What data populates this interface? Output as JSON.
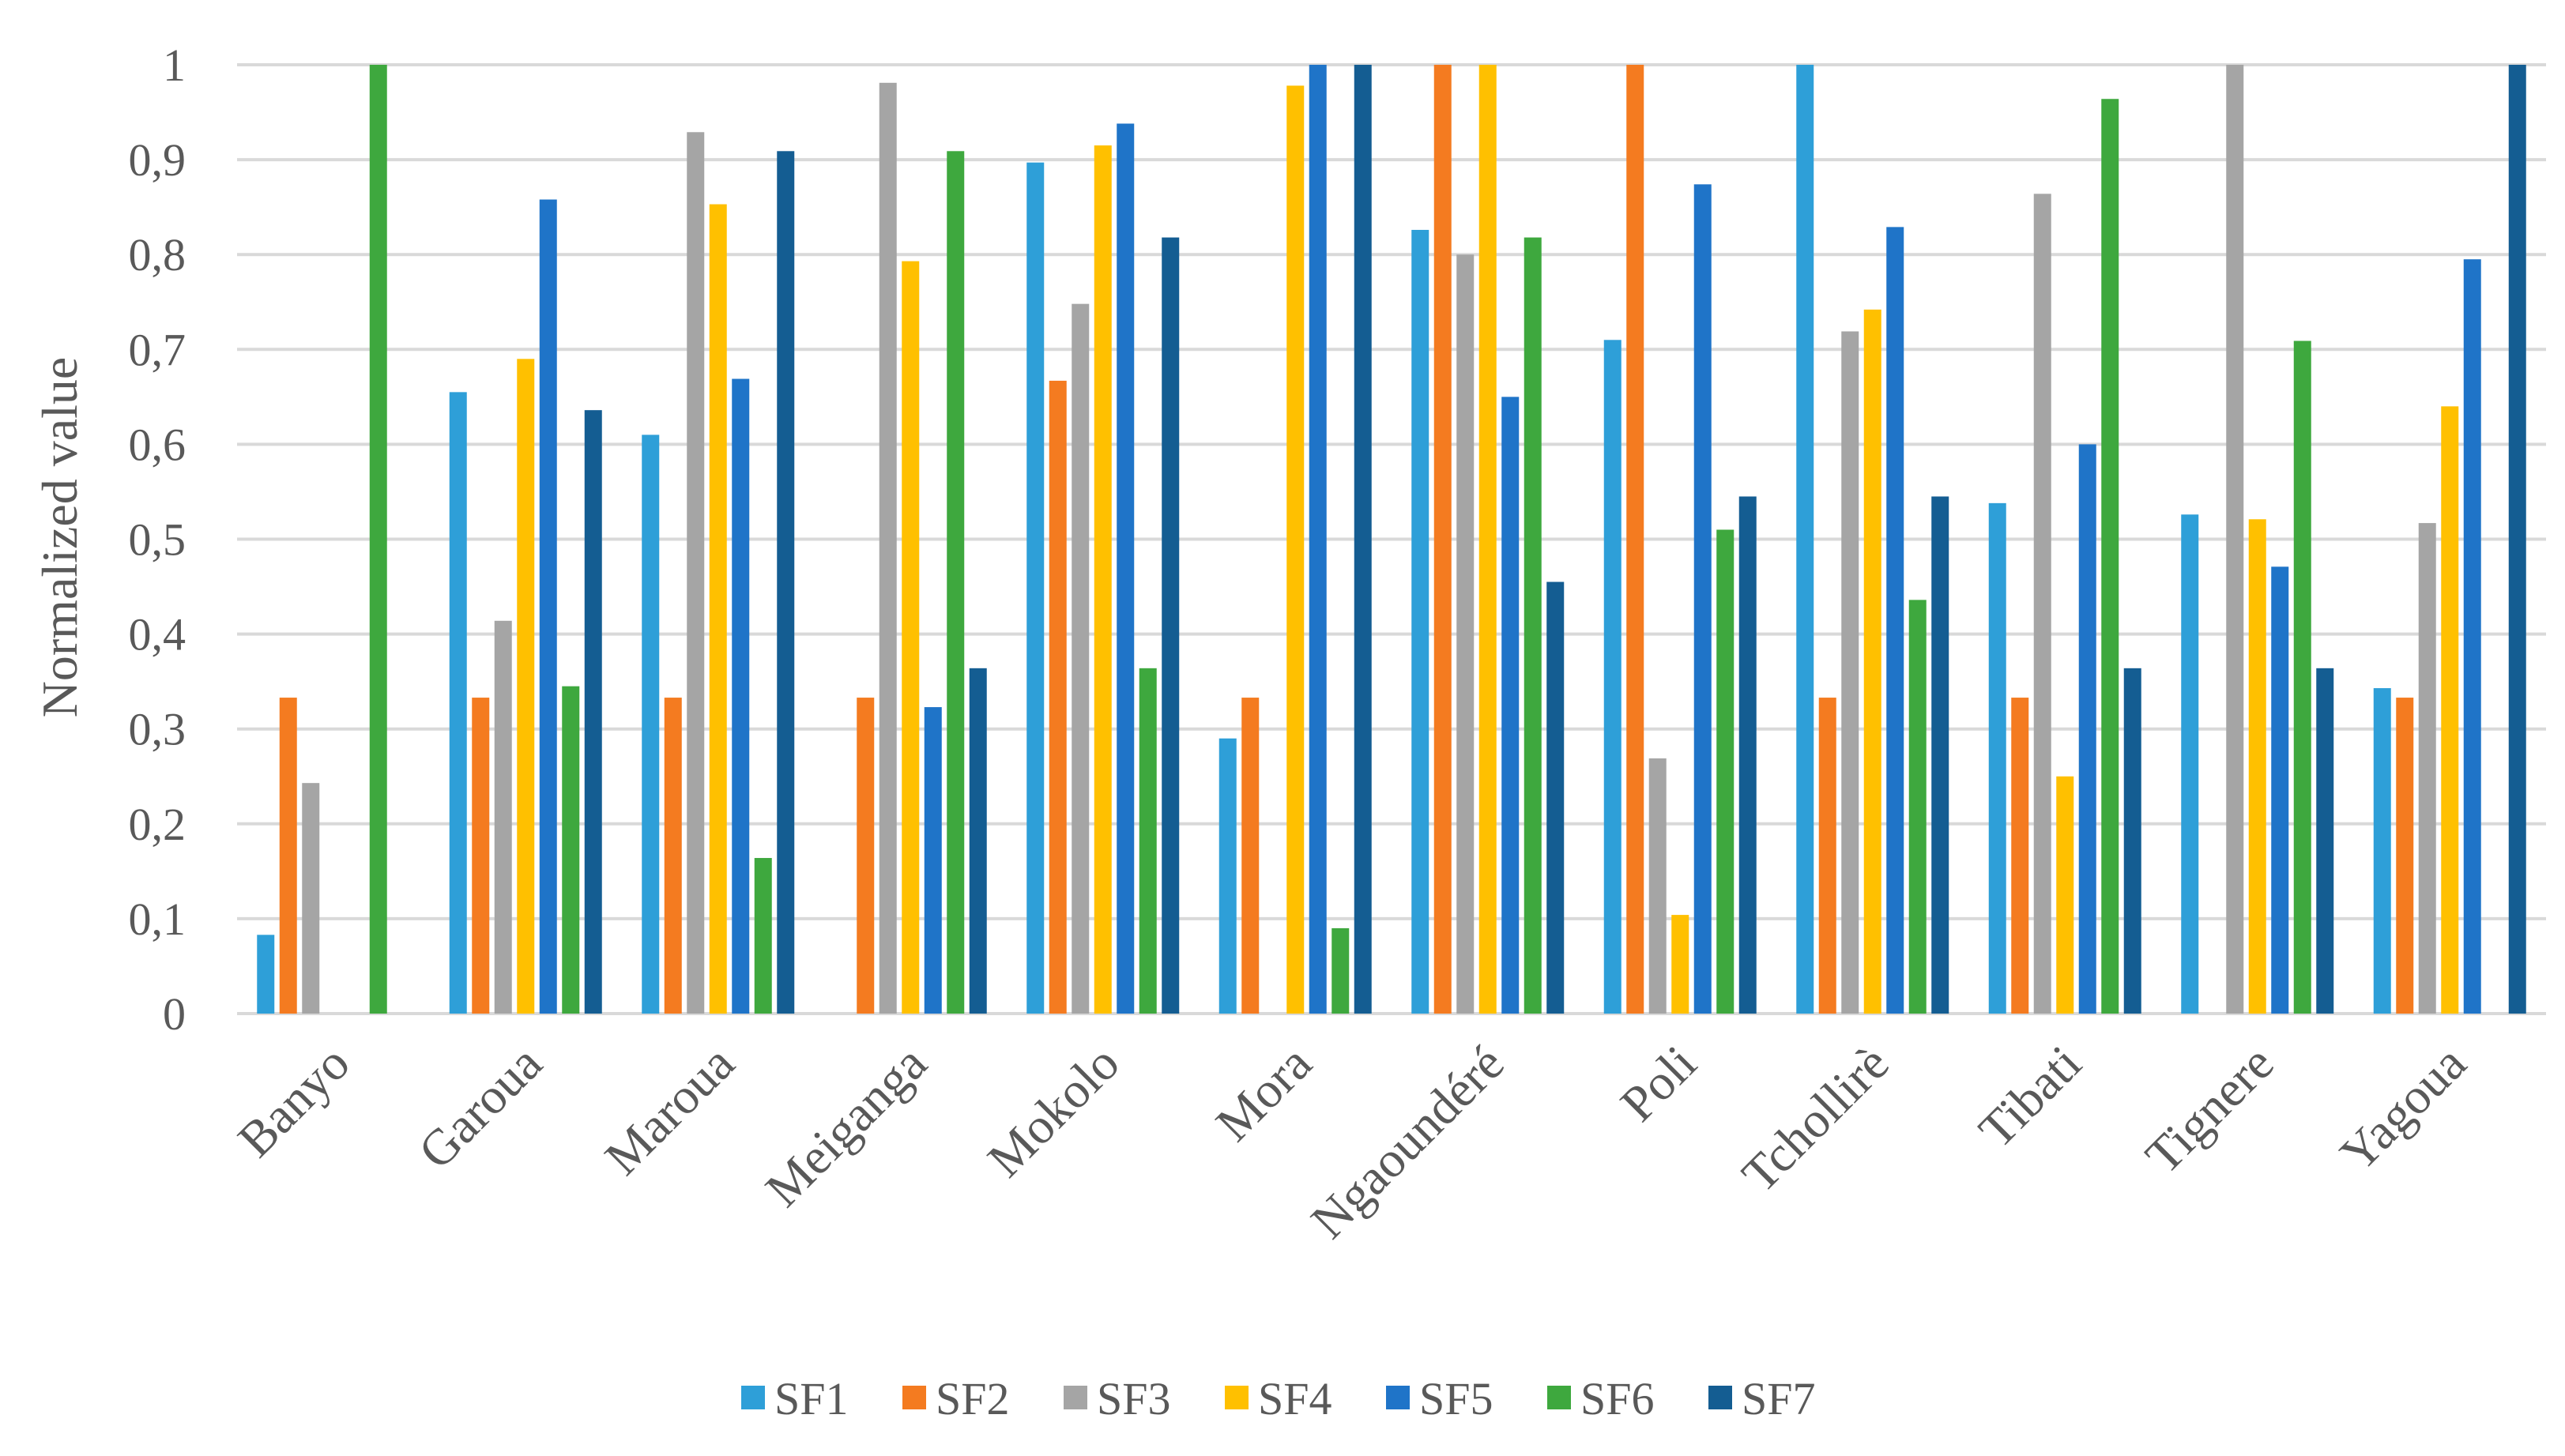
{
  "chart_data": {
    "type": "bar",
    "title": "",
    "xlabel": "",
    "ylabel": "Normalized value",
    "ylim": [
      0,
      1
    ],
    "yticks": [
      "0",
      "0,1",
      "0,2",
      "0,3",
      "0,4",
      "0,5",
      "0,6",
      "0,7",
      "0,8",
      "0,9",
      "1"
    ],
    "ytick_values": [
      0,
      0.1,
      0.2,
      0.3,
      0.4,
      0.5,
      0.6,
      0.7,
      0.8,
      0.9,
      1
    ],
    "grid": true,
    "legend_position": "bottom",
    "categories": [
      "Banyo",
      "Garoua",
      "Maroua",
      "Meiganga",
      "Mokolo",
      "Mora",
      "Ngaoundéré",
      "Poli",
      "Tchollirè",
      "Tibati",
      "Tignere",
      "Yagoua"
    ],
    "series": [
      {
        "name": "SF1",
        "color": "#2e9fd8",
        "values": [
          0.083,
          0.655,
          0.61,
          0,
          0.897,
          0.29,
          0.826,
          0.71,
          1.0,
          0.538,
          0.526,
          0.343
        ]
      },
      {
        "name": "SF2",
        "color": "#f47b20",
        "values": [
          0.333,
          0.333,
          0.333,
          0.333,
          0.667,
          0.333,
          1.0,
          1.0,
          0.333,
          0.333,
          0,
          0.333
        ]
      },
      {
        "name": "SF3",
        "color": "#a5a5a5",
        "values": [
          0.243,
          0.414,
          0.929,
          0.981,
          0.748,
          0,
          0.8,
          0.269,
          0.719,
          0.864,
          1.0,
          0.517
        ]
      },
      {
        "name": "SF4",
        "color": "#ffc000",
        "values": [
          0,
          0.69,
          0.853,
          0.793,
          0.915,
          0.978,
          1.0,
          0.104,
          0.742,
          0.25,
          0.521,
          0.64
        ]
      },
      {
        "name": "SF5",
        "color": "#1f74c8",
        "values": [
          0,
          0.858,
          0.669,
          0.323,
          0.938,
          1.0,
          0.65,
          0.874,
          0.829,
          0.6,
          0.471,
          0.795
        ]
      },
      {
        "name": "SF6",
        "color": "#3ea83e",
        "values": [
          1.0,
          0.345,
          0.164,
          0.909,
          0.364,
          0.09,
          0.818,
          0.51,
          0.436,
          0.964,
          0.709,
          0
        ]
      },
      {
        "name": "SF7",
        "color": "#145d92",
        "values": [
          0,
          0.636,
          0.909,
          0.364,
          0.818,
          1.0,
          0.455,
          0.545,
          0.545,
          0.364,
          0.364,
          1.0
        ]
      }
    ]
  }
}
